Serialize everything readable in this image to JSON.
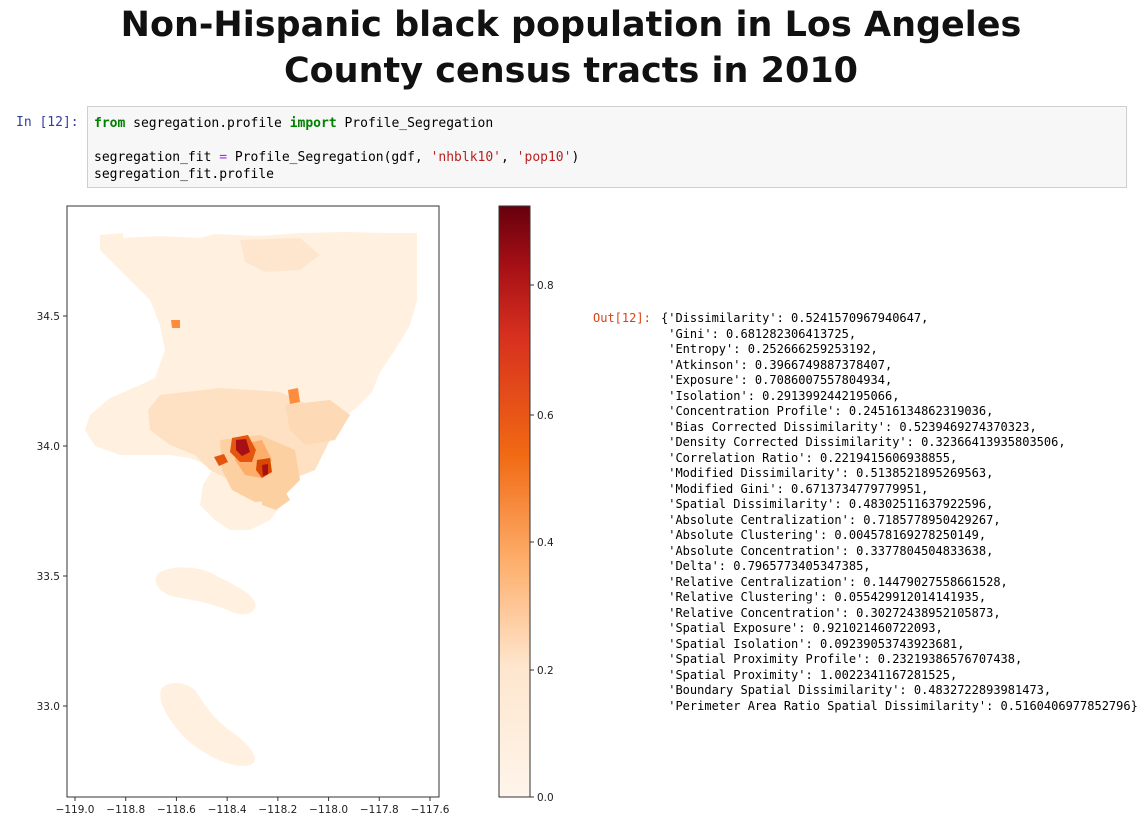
{
  "title": {
    "line1": "Non-Hispanic black population in Los Angeles",
    "line2": "County census tracts in 2010"
  },
  "input_cell": {
    "prompt": "In [12]:",
    "lines": [
      [
        {
          "t": "from",
          "c": "kw"
        },
        {
          "t": " segregation.profile ",
          "c": ""
        },
        {
          "t": "import",
          "c": "kw"
        },
        {
          "t": " Profile_Segregation",
          "c": ""
        }
      ],
      [],
      [
        {
          "t": "segregation_fit ",
          "c": ""
        },
        {
          "t": "=",
          "c": "op"
        },
        {
          "t": " Profile_Segregation(gdf, ",
          "c": ""
        },
        {
          "t": "'nhblk10'",
          "c": "str"
        },
        {
          "t": ", ",
          "c": ""
        },
        {
          "t": "'pop10'",
          "c": "str"
        },
        {
          "t": ")",
          "c": ""
        }
      ],
      [
        {
          "t": "segregation_fit.profile",
          "c": ""
        }
      ]
    ]
  },
  "map_axes": {
    "x_ticks": [
      "−119.0",
      "−118.8",
      "−118.6",
      "−118.4",
      "−118.2",
      "−118.0",
      "−117.8",
      "−117.6"
    ],
    "y_ticks": [
      "34.5",
      "34.0",
      "33.5",
      "33.0"
    ]
  },
  "colorbar": {
    "ticks": [
      "0.8",
      "0.6",
      "0.4",
      "0.2",
      "0.0"
    ],
    "colors": [
      "#fff5eb",
      "#fdd0a2",
      "#fdae6b",
      "#f16913",
      "#d94801",
      "#a63603",
      "#7f2704"
    ],
    "colors_used": [
      "#fff5eb",
      "#fee6ce",
      "#fdd0a2",
      "#fdae6b",
      "#fd8d3c",
      "#e6550d",
      "#a50f15",
      "#67000d"
    ]
  },
  "output": {
    "prompt": "Out[12]:",
    "lines": [
      "{'Dissimilarity': 0.5241570967940647,",
      " 'Gini': 0.681282306413725,",
      " 'Entropy': 0.252666259253192,",
      " 'Atkinson': 0.3966749887378407,",
      " 'Exposure': 0.7086007557804934,",
      " 'Isolation': 0.2913992442195066,",
      " 'Concentration Profile': 0.24516134862319036,",
      " 'Bias Corrected Dissimilarity': 0.5239469274370323,",
      " 'Density Corrected Dissimilarity': 0.32366413935803506,",
      " 'Correlation Ratio': 0.2219415606938855,",
      " 'Modified Dissimilarity': 0.5138521895269563,",
      " 'Modified Gini': 0.6713734779779951,",
      " 'Spatial Dissimilarity': 0.48302511637922596,",
      " 'Absolute Centralization': 0.7185778950429267,",
      " 'Absolute Clustering': 0.004578169278250149,",
      " 'Absolute Concentration': 0.3377804504833638,",
      " 'Delta': 0.7965773405347385,",
      " 'Relative Centralization': 0.14479027558661528,",
      " 'Relative Clustering': 0.055429912014141935,",
      " 'Relative Concentration': 0.30272438952105873,",
      " 'Spatial Exposure': 0.921021460722093,",
      " 'Spatial Isolation': 0.09239053743923681,",
      " 'Spatial Proximity Profile': 0.23219386576707438,",
      " 'Spatial Proximity': 1.0022341167281525,",
      " 'Boundary Spatial Dissimilarity': 0.4832722893981473,",
      " 'Perimeter Area Ratio Spatial Dissimilarity': 0.5160406977852796}"
    ]
  }
}
